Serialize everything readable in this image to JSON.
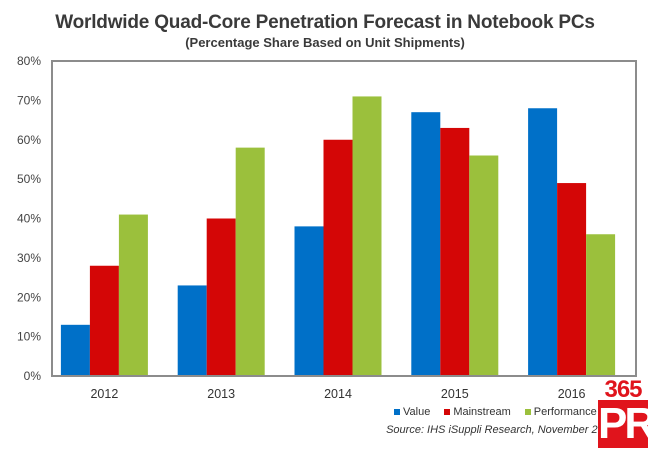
{
  "chart_data": {
    "type": "bar",
    "title": "Worldwide Quad-Core Penetration Forecast in Notebook PCs",
    "subtitle": "(Percentage Share Based on Unit Shipments)",
    "xlabel": "",
    "ylabel": "",
    "categories": [
      "2012",
      "2013",
      "2014",
      "2015",
      "2016"
    ],
    "series": [
      {
        "name": "Value",
        "color": "#0070c8",
        "values": [
          13,
          23,
          38,
          67,
          68
        ]
      },
      {
        "name": "Mainstream",
        "color": "#d40606",
        "values": [
          28,
          40,
          60,
          63,
          49
        ]
      },
      {
        "name": "Performance",
        "color": "#9bc03c",
        "values": [
          41,
          58,
          71,
          56,
          36
        ]
      }
    ],
    "ylim": [
      0,
      80
    ],
    "yticks": [
      0,
      10,
      20,
      30,
      40,
      50,
      60,
      70,
      80
    ],
    "ytick_labels": [
      "0%",
      "10%",
      "20%",
      "30%",
      "40%",
      "50%",
      "60%",
      "70%",
      "80%"
    ],
    "grid": false,
    "legend_position": "bottom-right",
    "source": "Source: IHS iSuppli Research, November 2012"
  },
  "watermark": {
    "number": "365",
    "letters": "PR"
  }
}
